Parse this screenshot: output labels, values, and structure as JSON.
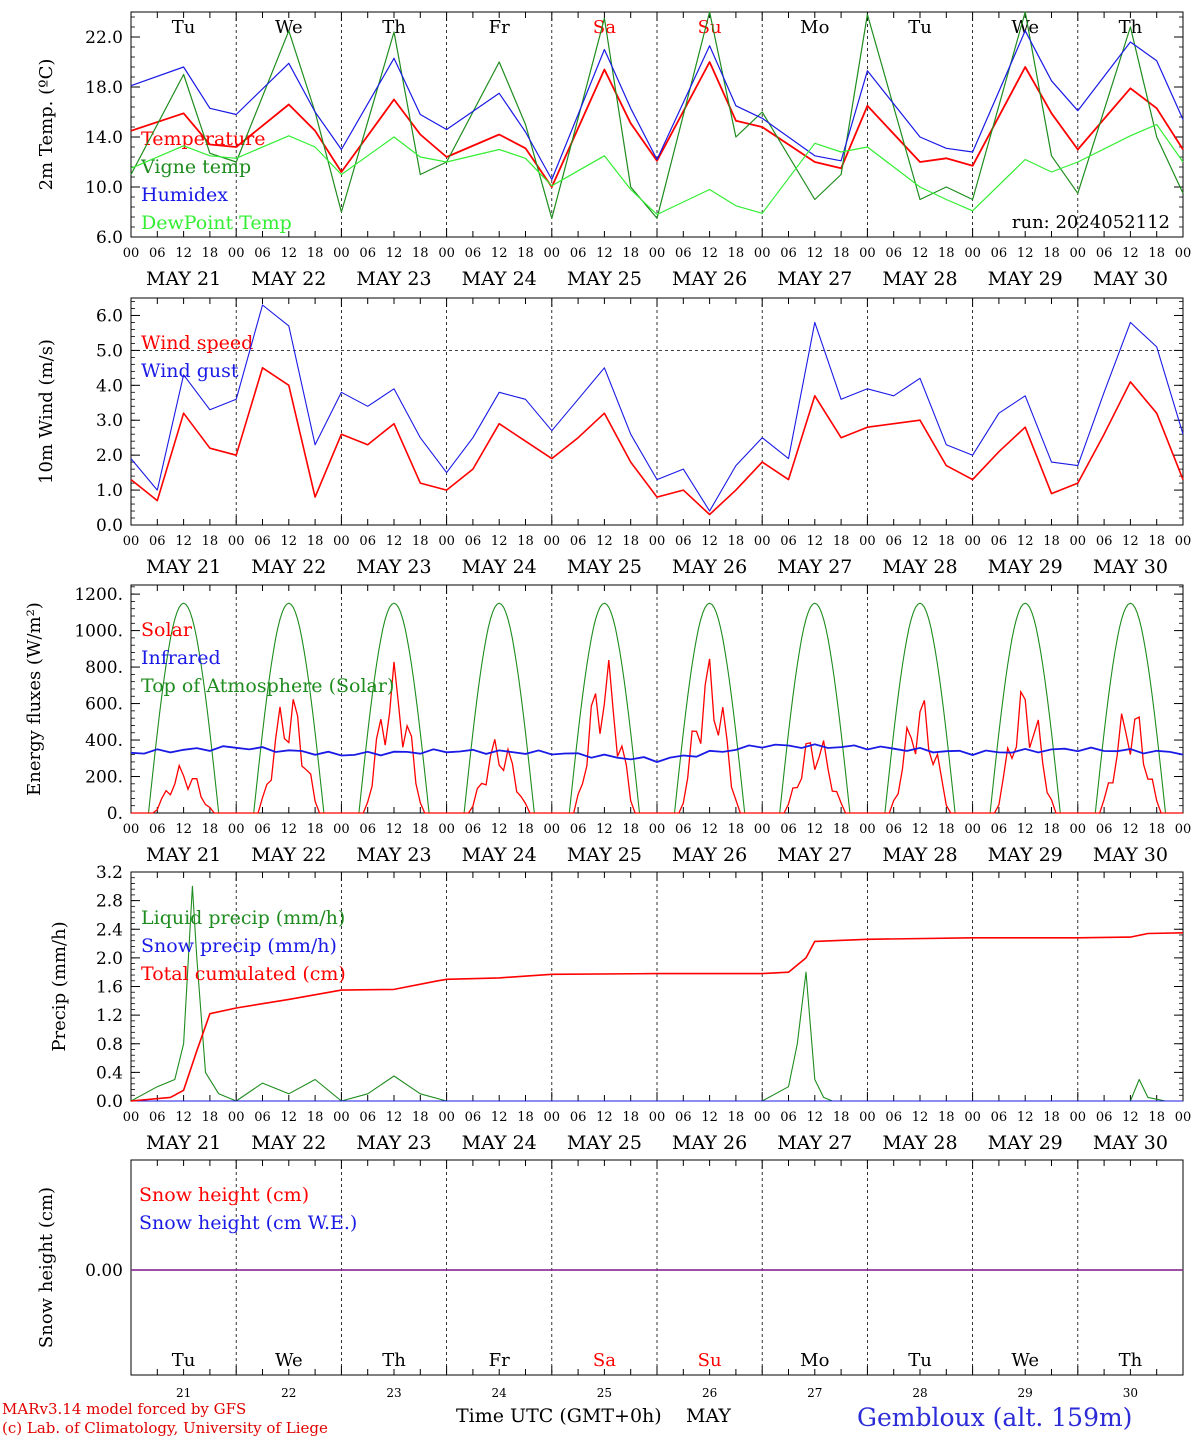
{
  "chart_data": [
    {
      "type": "line",
      "ylabel": "2m Temp. (ºC)",
      "ylim": [
        6.0,
        24.0
      ],
      "yticks": [
        6.0,
        10.0,
        14.0,
        18.0,
        22.0
      ],
      "ytick_labels": [
        "6.0",
        "10.0",
        "14.0",
        "18.0",
        "22.0"
      ],
      "annotation": "run: 2024052112",
      "x_hours": [
        0,
        12,
        18,
        24,
        36,
        42,
        48,
        60,
        66,
        72,
        84,
        90,
        96,
        108,
        114,
        120,
        132,
        138,
        144,
        156,
        162,
        168,
        180,
        186,
        192,
        204,
        210,
        216,
        228,
        234,
        240
      ],
      "series": [
        {
          "name": "Temperature",
          "color": "#ff0000",
          "values": [
            14.5,
            15.9,
            13.4,
            13.2,
            16.6,
            14.5,
            11.2,
            17.0,
            14.2,
            12.4,
            14.2,
            13.1,
            10.0,
            19.4,
            15.1,
            12.1,
            20.0,
            15.3,
            14.8,
            12.0,
            11.5,
            16.5,
            12.0,
            12.3,
            11.7,
            19.6,
            15.9,
            13.0,
            17.9,
            16.3,
            13.0
          ]
        },
        {
          "name": "Vigne temp",
          "color": "#1e8c1e",
          "values": [
            11.0,
            19.0,
            12.7,
            12.0,
            22.5,
            16.0,
            8.0,
            22.4,
            11.0,
            12.0,
            20.0,
            15.0,
            7.5,
            23.5,
            10.0,
            7.5,
            25.0,
            14.0,
            16.0,
            9.0,
            11.0,
            23.8,
            9.0,
            10.0,
            9.0,
            24.5,
            12.5,
            9.5,
            22.8,
            14.0,
            9.5
          ]
        },
        {
          "name": "Humidex",
          "color": "#1a1ae6",
          "values": [
            18.1,
            19.6,
            16.3,
            15.8,
            19.9,
            16.0,
            13.0,
            20.3,
            15.8,
            14.6,
            17.5,
            14.4,
            10.6,
            21.0,
            16.3,
            12.2,
            21.3,
            16.5,
            15.5,
            12.5,
            12.1,
            19.3,
            14.0,
            13.1,
            12.8,
            22.5,
            18.5,
            16.1,
            21.6,
            20.1,
            15.4
          ]
        },
        {
          "name": "DewPoint Temp",
          "color": "#33ee33",
          "values": [
            11.5,
            13.3,
            12.5,
            12.3,
            14.1,
            13.2,
            11.0,
            14.0,
            12.4,
            12.0,
            13.0,
            12.3,
            10.1,
            12.5,
            9.8,
            7.8,
            9.8,
            8.5,
            7.9,
            13.5,
            12.8,
            13.2,
            10.0,
            9.0,
            8.1,
            12.2,
            11.2,
            12.0,
            14.1,
            15.0,
            12.0
          ]
        }
      ]
    },
    {
      "type": "line",
      "ylabel": "10m Wind (m/s)",
      "ylim": [
        0.0,
        6.5
      ],
      "yticks": [
        0.0,
        1.0,
        2.0,
        3.0,
        4.0,
        5.0,
        6.0
      ],
      "ytick_labels": [
        "0.0",
        "1.0",
        "2.0",
        "3.0",
        "4.0",
        "5.0",
        "6.0"
      ],
      "reference_line": 5.0,
      "x_hours": [
        0,
        6,
        12,
        18,
        24,
        30,
        36,
        42,
        48,
        54,
        60,
        66,
        72,
        78,
        84,
        90,
        96,
        102,
        108,
        114,
        120,
        126,
        132,
        138,
        144,
        150,
        156,
        162,
        168,
        174,
        180,
        186,
        192,
        198,
        204,
        210,
        216,
        222,
        228,
        234,
        240
      ],
      "series": [
        {
          "name": "Wind speed",
          "color": "#ff0000",
          "values": [
            1.3,
            0.7,
            3.2,
            2.2,
            2.0,
            4.5,
            4.0,
            0.8,
            2.6,
            2.3,
            2.9,
            1.2,
            1.0,
            1.6,
            2.9,
            2.4,
            1.9,
            2.5,
            3.2,
            1.8,
            0.8,
            1.0,
            0.3,
            1.0,
            1.8,
            1.3,
            3.7,
            2.5,
            2.8,
            2.9,
            3.0,
            1.7,
            1.3,
            2.1,
            2.8,
            0.9,
            1.2,
            2.6,
            4.1,
            3.2,
            1.3
          ]
        },
        {
          "name": "Wind gust",
          "color": "#1a1ae6",
          "values": [
            1.9,
            1.0,
            4.3,
            3.3,
            3.6,
            6.3,
            5.7,
            2.3,
            3.8,
            3.4,
            3.9,
            2.5,
            1.5,
            2.5,
            3.8,
            3.6,
            2.7,
            3.6,
            4.5,
            2.6,
            1.3,
            1.6,
            0.4,
            1.7,
            2.5,
            1.9,
            5.8,
            3.6,
            3.9,
            3.7,
            4.2,
            2.3,
            2.0,
            3.2,
            3.7,
            1.8,
            1.7,
            3.8,
            5.8,
            5.1,
            2.6
          ]
        }
      ]
    },
    {
      "type": "line",
      "ylabel": "Energy fluxes (W/m²)",
      "ylim": [
        0,
        1250
      ],
      "yticks": [
        0,
        200,
        400,
        600,
        800,
        1000,
        1200
      ],
      "ytick_labels": [
        "0.",
        "200.",
        "400.",
        "600.",
        "800.",
        "1000.",
        "1200."
      ],
      "series": [
        {
          "name": "Solar",
          "color": "#ff0000",
          "daily_peak": [
            270,
            690,
            830,
            430,
            870,
            870,
            460,
            660,
            720,
            630
          ]
        },
        {
          "name": "Infrared",
          "color": "#1a1ae6",
          "x_hours": [
            0,
            24,
            48,
            72,
            96,
            120,
            144,
            168,
            192,
            216,
            240
          ],
          "values": [
            330,
            360,
            320,
            340,
            330,
            290,
            370,
            360,
            330,
            350,
            330
          ]
        },
        {
          "name": "Top of Atmosphere (Solar)",
          "color": "#1e8c1e",
          "daily_peak": [
            1150,
            1150,
            1150,
            1150,
            1150,
            1150,
            1150,
            1150,
            1150,
            1150
          ]
        }
      ]
    },
    {
      "type": "line",
      "ylabel": "Precip (mm/h)",
      "ylim": [
        0.0,
        3.2
      ],
      "yticks": [
        0.0,
        0.4,
        0.8,
        1.2,
        1.6,
        2.0,
        2.4,
        2.8,
        3.2
      ],
      "ytick_labels": [
        "0.0",
        "0.4",
        "0.8",
        "1.2",
        "1.6",
        "2.0",
        "2.4",
        "2.8",
        "3.2"
      ],
      "series": [
        {
          "name": "Liquid precip (mm/h)",
          "color": "#1e8c1e",
          "x_hours": [
            0,
            6,
            10,
            12,
            14,
            15,
            17,
            20,
            24,
            30,
            36,
            42,
            48,
            54,
            60,
            66,
            72,
            96,
            120,
            144,
            150,
            152,
            154,
            156,
            158,
            160,
            168,
            192,
            216,
            228,
            230,
            232,
            236,
            240
          ],
          "values": [
            0.0,
            0.2,
            0.3,
            0.8,
            3.0,
            2.0,
            0.4,
            0.1,
            0.0,
            0.25,
            0.1,
            0.3,
            0.0,
            0.1,
            0.35,
            0.1,
            0.0,
            0.0,
            0.0,
            0.0,
            0.2,
            0.8,
            1.8,
            0.3,
            0.05,
            0.0,
            0.0,
            0.0,
            0.0,
            0.0,
            0.3,
            0.05,
            0.0,
            0.0
          ]
        },
        {
          "name": "Snow precip (mm/h)",
          "color": "#1a1ae6",
          "x_hours": [
            0,
            240
          ],
          "values": [
            0.0,
            0.0
          ]
        },
        {
          "name": "Total cumulated (cm)",
          "color": "#ff0000",
          "x_hours": [
            0,
            9,
            12,
            15,
            18,
            24,
            36,
            48,
            60,
            70,
            72,
            84,
            96,
            120,
            144,
            150,
            154,
            156,
            168,
            192,
            216,
            228,
            232,
            240
          ],
          "values": [
            0.0,
            0.05,
            0.15,
            0.7,
            1.22,
            1.3,
            1.42,
            1.55,
            1.56,
            1.68,
            1.7,
            1.72,
            1.77,
            1.78,
            1.78,
            1.8,
            2.0,
            2.23,
            2.26,
            2.28,
            2.28,
            2.29,
            2.34,
            2.35
          ]
        }
      ]
    },
    {
      "type": "line",
      "ylabel": "Snow height (cm)",
      "yticks": [
        0.0
      ],
      "ytick_labels": [
        "0.00"
      ],
      "series": [
        {
          "name": "Snow height (cm)",
          "color": "#ff0000",
          "x_hours": [
            0,
            240
          ],
          "values": [
            0.0,
            0.0
          ]
        },
        {
          "name": "Snow height (cm W.E.)",
          "color": "#1a1ae6",
          "x_hours": [
            0,
            240
          ],
          "values": [
            0.0,
            0.0
          ]
        }
      ]
    }
  ],
  "axis": {
    "hour_labels": [
      "00",
      "06",
      "12",
      "18"
    ],
    "dates": [
      "MAY 21",
      "MAY 22",
      "MAY 23",
      "MAY 24",
      "MAY 25",
      "MAY 26",
      "MAY 27",
      "MAY 28",
      "MAY 29",
      "MAY 30"
    ],
    "day_numbers": [
      "21",
      "22",
      "23",
      "24",
      "25",
      "26",
      "27",
      "28",
      "29",
      "30"
    ],
    "weekdays": [
      "Tu",
      "We",
      "Th",
      "Fr",
      "Sa",
      "Su",
      "Mo",
      "Tu",
      "We",
      "Th"
    ],
    "weekend_color": "#ff0000"
  },
  "footer": {
    "model": "MARv3.14 model forced by GFS",
    "lab": "(c) Lab. of Climatology, University of Liege",
    "time_label": "Time UTC (GMT+0h)",
    "month": "MAY",
    "station": "Gembloux (alt. 159m)"
  }
}
